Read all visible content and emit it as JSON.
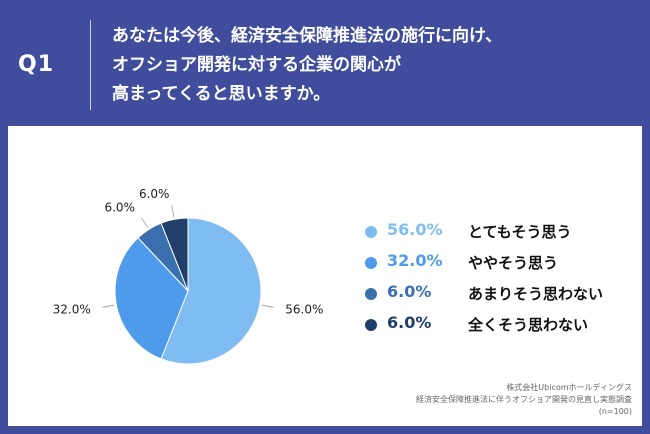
{
  "header": {
    "question_number": "Q1",
    "question_lines": [
      "あなたは今後、経済安全保障推進法の施行に向け、",
      "オフショア開発に対する企業の関心が",
      "高まってくると思いますか。"
    ]
  },
  "chart_data": {
    "type": "pie",
    "categories": [
      "とてもそう思う",
      "ややそう思う",
      "あまりそう思わない",
      "全くそう思わない"
    ],
    "values": [
      56.0,
      32.0,
      6.0,
      6.0
    ],
    "labels": [
      "56.0%",
      "32.0%",
      "6.0%",
      "6.0%"
    ],
    "colors": [
      "#7fbcf2",
      "#4d9bea",
      "#3a6fad",
      "#203f6b"
    ],
    "legend_placement": "right"
  },
  "legend": {
    "items": [
      {
        "pct": "56.0%",
        "label": "とてもそう思う",
        "color": "#7fbcf2"
      },
      {
        "pct": "32.0%",
        "label": "ややそう思う",
        "color": "#4d9bea"
      },
      {
        "pct": "6.0%",
        "label": "あまりそう思わない",
        "color": "#3a6fad"
      },
      {
        "pct": "6.0%",
        "label": "全くそう思わない",
        "color": "#203f6b"
      }
    ]
  },
  "footer": {
    "company": "株式会社Ubicomホールディングス",
    "survey": "経済安全保障推進法に伴うオフショア開発の見直し実態調査",
    "sample": "(n=100)"
  }
}
